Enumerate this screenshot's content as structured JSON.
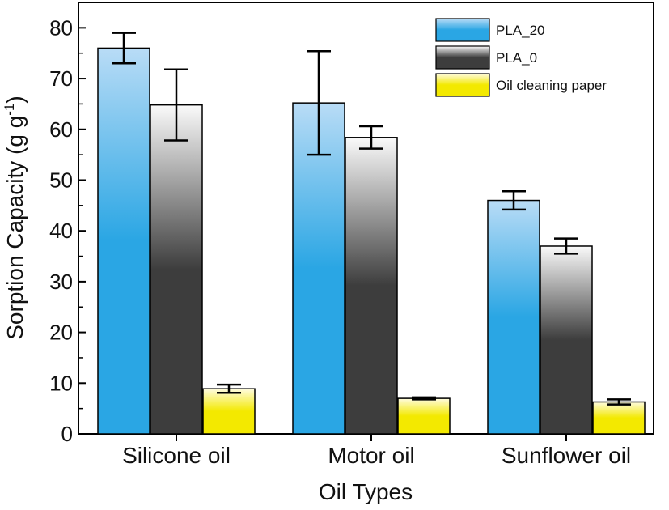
{
  "chart_data": {
    "type": "bar",
    "xlabel": "Oil Types",
    "ylabel": "Sorption Capacity (g g",
    "ylabel_sup": "-1",
    "ylabel_close": ")",
    "ylim": [
      0,
      85
    ],
    "yticks": [
      0,
      10,
      20,
      30,
      40,
      50,
      60,
      70,
      80
    ],
    "categories": [
      "Silicone oil",
      "Motor oil",
      "Sunflower oil"
    ],
    "series": [
      {
        "name": "PLA_20",
        "values": [
          76.0,
          65.2,
          46.0
        ],
        "errors": [
          3.0,
          10.2,
          1.8
        ],
        "colors": [
          "#2aa6e4",
          "#b9dcf6"
        ]
      },
      {
        "name": "PLA_0",
        "values": [
          64.8,
          58.4,
          37.0
        ],
        "errors": [
          7.0,
          2.2,
          1.5
        ],
        "colors": [
          "#3d3d3d",
          "#fafafa"
        ]
      },
      {
        "name": "Oil cleaning paper",
        "values": [
          8.9,
          7.0,
          6.3
        ],
        "errors": [
          0.8,
          0.2,
          0.5
        ],
        "colors": [
          "#f3e900",
          "#fffce0"
        ]
      }
    ],
    "legend_position": "top-right",
    "grid": false
  }
}
